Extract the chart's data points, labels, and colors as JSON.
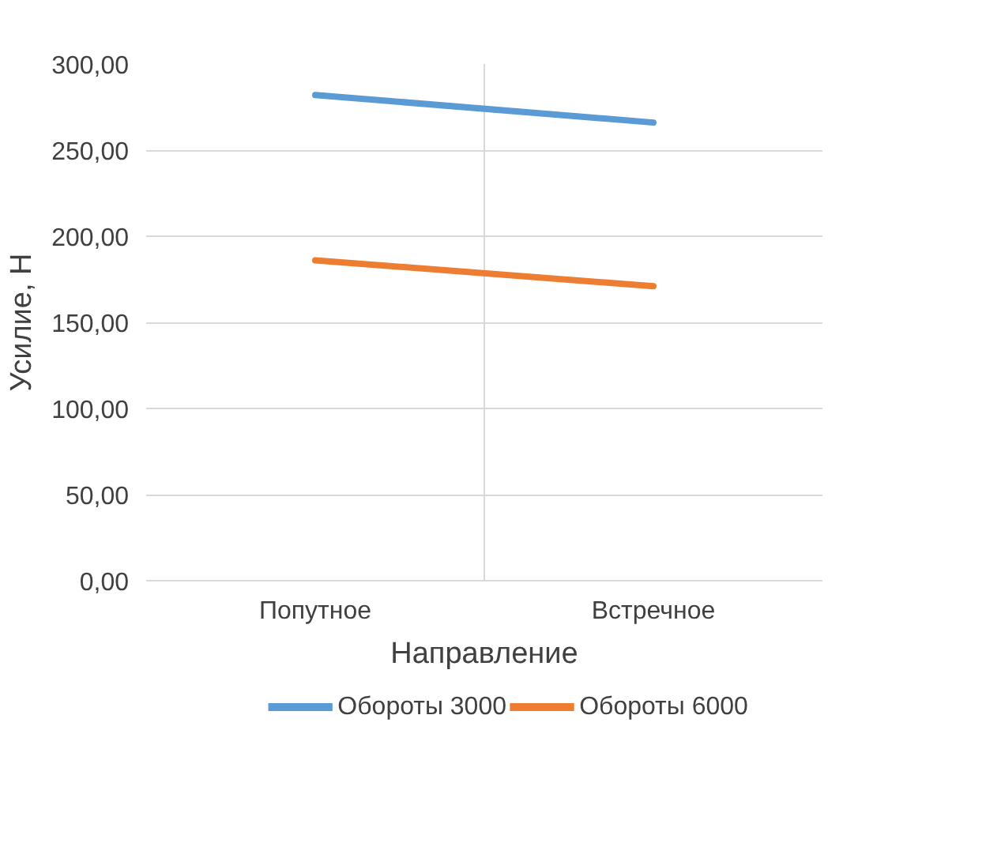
{
  "chart_data": {
    "type": "line",
    "xlabel": "Направление",
    "ylabel": "Усилие, Н",
    "categories": [
      "Попутное",
      "Встречное"
    ],
    "series": [
      {
        "name": "Обороты 3000",
        "color": "#5b9bd5",
        "values": [
          282,
          266
        ]
      },
      {
        "name": "Обороты 6000",
        "color": "#ed7d31",
        "values": [
          186,
          171
        ]
      }
    ],
    "ylim": [
      0,
      300
    ],
    "yticks": [
      {
        "value": 0,
        "label": "0,00"
      },
      {
        "value": 50,
        "label": "50,00"
      },
      {
        "value": 100,
        "label": "100,00"
      },
      {
        "value": 150,
        "label": "150,00"
      },
      {
        "value": 200,
        "label": "200,00"
      },
      {
        "value": 250,
        "label": "250,00"
      },
      {
        "value": 300,
        "label": "300,00"
      }
    ],
    "grid": true,
    "legend": "bottom",
    "marker": "none",
    "line_style": "solid"
  }
}
